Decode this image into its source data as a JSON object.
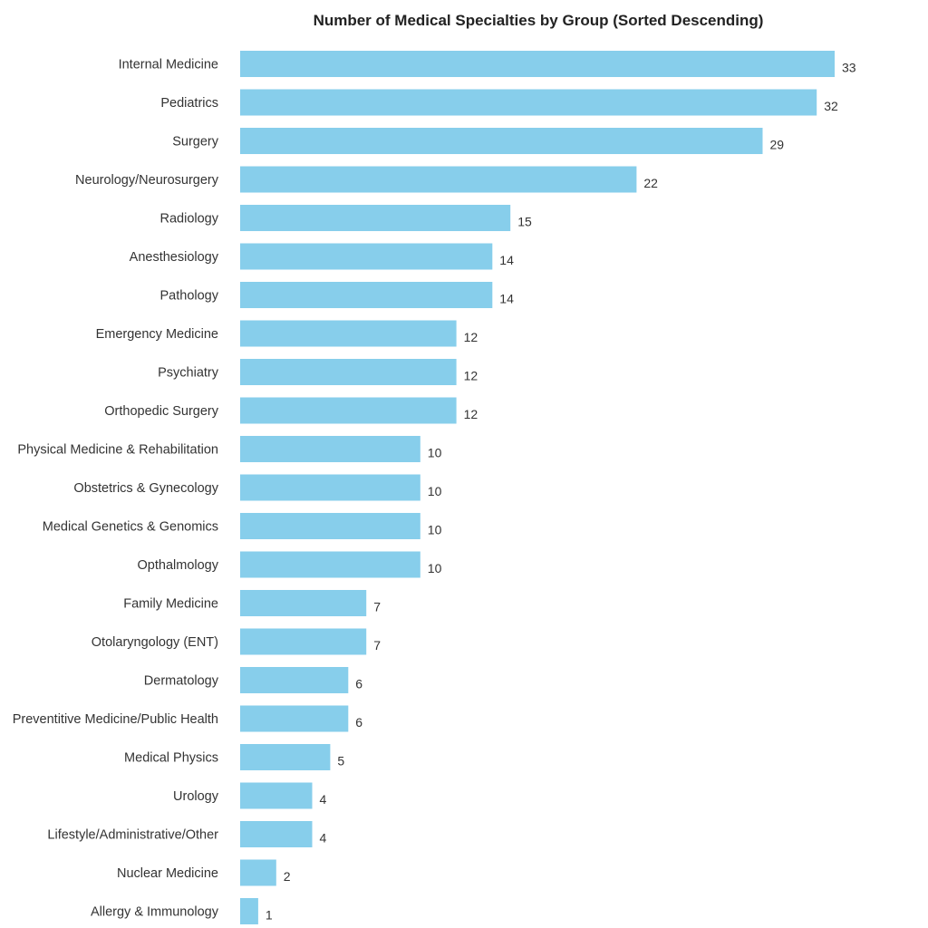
{
  "chart_data": {
    "type": "bar",
    "orientation": "horizontal",
    "title": "Number of Medical Specialties by Group (Sorted Descending)",
    "xlabel": "",
    "ylabel": "",
    "grid": false,
    "bar_color": "#87ceeb",
    "categories": [
      "Internal Medicine",
      "Pediatrics",
      "Surgery",
      "Neurology/Neurosurgery",
      "Radiology",
      "Anesthesiology",
      "Pathology",
      "Emergency Medicine",
      "Psychiatry",
      "Orthopedic Surgery",
      "Physical Medicine & Rehabilitation",
      "Obstetrics & Gynecology",
      "Medical Genetics & Genomics",
      "Opthalmology",
      "Family Medicine",
      "Otolaryngology (ENT)",
      "Dermatology",
      "Preventitive Medicine/Public Health",
      "Medical Physics",
      "Urology",
      "Lifestyle/Administrative/Other",
      "Nuclear Medicine",
      "Allergy & Immunology"
    ],
    "values": [
      33,
      32,
      29,
      22,
      15,
      14,
      14,
      12,
      12,
      12,
      10,
      10,
      10,
      10,
      7,
      7,
      6,
      6,
      5,
      4,
      4,
      2,
      1
    ]
  }
}
